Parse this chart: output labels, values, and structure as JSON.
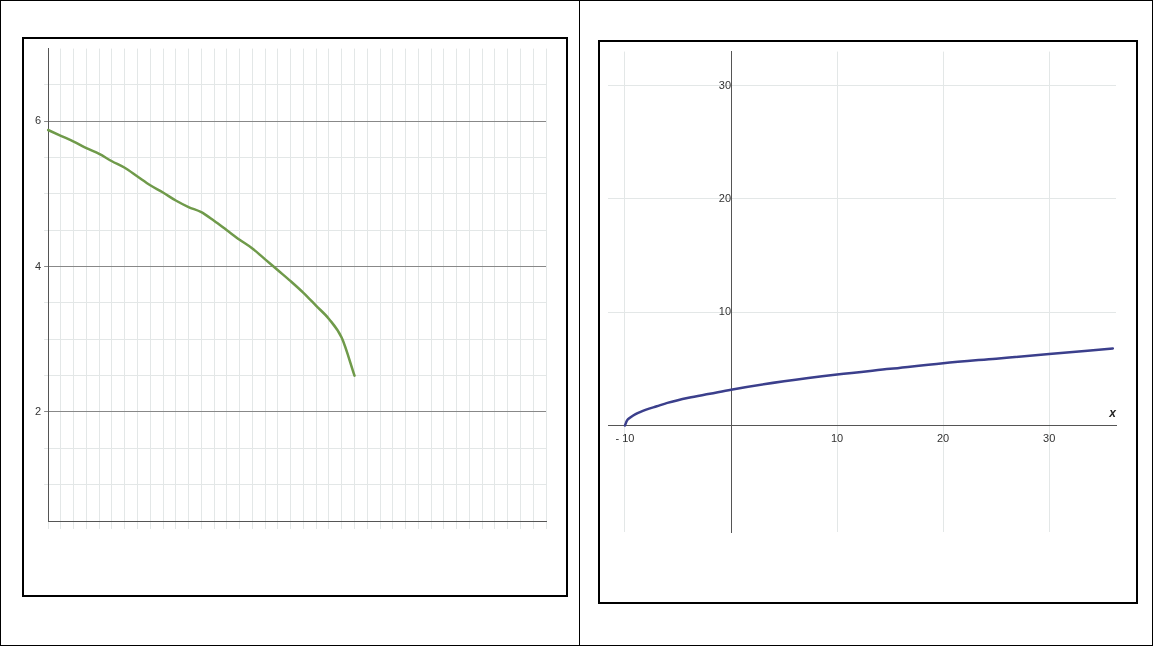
{
  "chart_data": [
    {
      "type": "line",
      "categories": [
        null,
        null,
        null,
        null,
        null,
        null,
        null,
        null,
        null,
        null,
        null,
        null,
        null,
        null,
        null,
        null,
        null,
        null,
        null,
        null,
        null,
        null,
        null,
        null,
        null,
        null,
        null,
        null,
        null,
        null,
        null,
        null,
        null,
        null,
        null,
        null,
        null,
        null,
        null,
        null
      ],
      "series": [
        {
          "color": "#6f9a4a",
          "values": [
            5.88,
            5.8,
            5.72,
            5.63,
            5.55,
            5.45,
            5.36,
            5.24,
            5.12,
            5.02,
            4.91,
            4.82,
            4.75,
            4.63,
            4.5,
            4.37,
            4.25,
            4.1,
            3.95,
            3.8,
            3.64,
            3.46,
            3.28,
            3.02,
            2.5,
            null,
            null,
            null,
            null,
            null,
            null,
            null,
            null,
            null,
            null,
            null,
            null,
            null,
            null,
            null
          ]
        }
      ],
      "ylim": [
        0.5,
        7
      ],
      "yticks": [
        {
          "value": 1,
          "label": null
        },
        {
          "value": 1.5,
          "label": null
        },
        2,
        {
          "value": 2.5,
          "label": null
        },
        {
          "value": 3,
          "label": null
        },
        {
          "value": 3.5,
          "label": null
        },
        4,
        {
          "value": 4.5,
          "label": null
        },
        {
          "value": 5,
          "label": null
        },
        {
          "value": 5.5,
          "label": null
        },
        6,
        {
          "value": 6.5,
          "label": null
        }
      ],
      "tick_labels": "y",
      "grid": true,
      "marker": "none",
      "line_style": "solid"
    },
    {
      "type": "line",
      "xlabel": "x",
      "x": [
        -10,
        -9.8,
        -9.5,
        -9,
        -8,
        -7,
        -6,
        -4,
        -2,
        0,
        5,
        10,
        15,
        20,
        25,
        30,
        36
      ],
      "series": [
        {
          "color": "#3b3f8c",
          "values": [
            0,
            0.45,
            0.7,
            1.0,
            1.4,
            1.7,
            2.0,
            2.45,
            2.8,
            3.16,
            3.9,
            4.5,
            5.0,
            5.5,
            5.9,
            6.3,
            6.8
          ]
        }
      ],
      "xlim": [
        -11.6,
        36.3
      ],
      "ylim": [
        -9.4,
        33
      ],
      "xticks": [
        {
          "value": -10,
          "label": "- 10"
        },
        10,
        20,
        30
      ],
      "yticks": [
        10,
        20,
        30
      ],
      "grid": true,
      "marker": "none",
      "line_style": "solid"
    }
  ]
}
